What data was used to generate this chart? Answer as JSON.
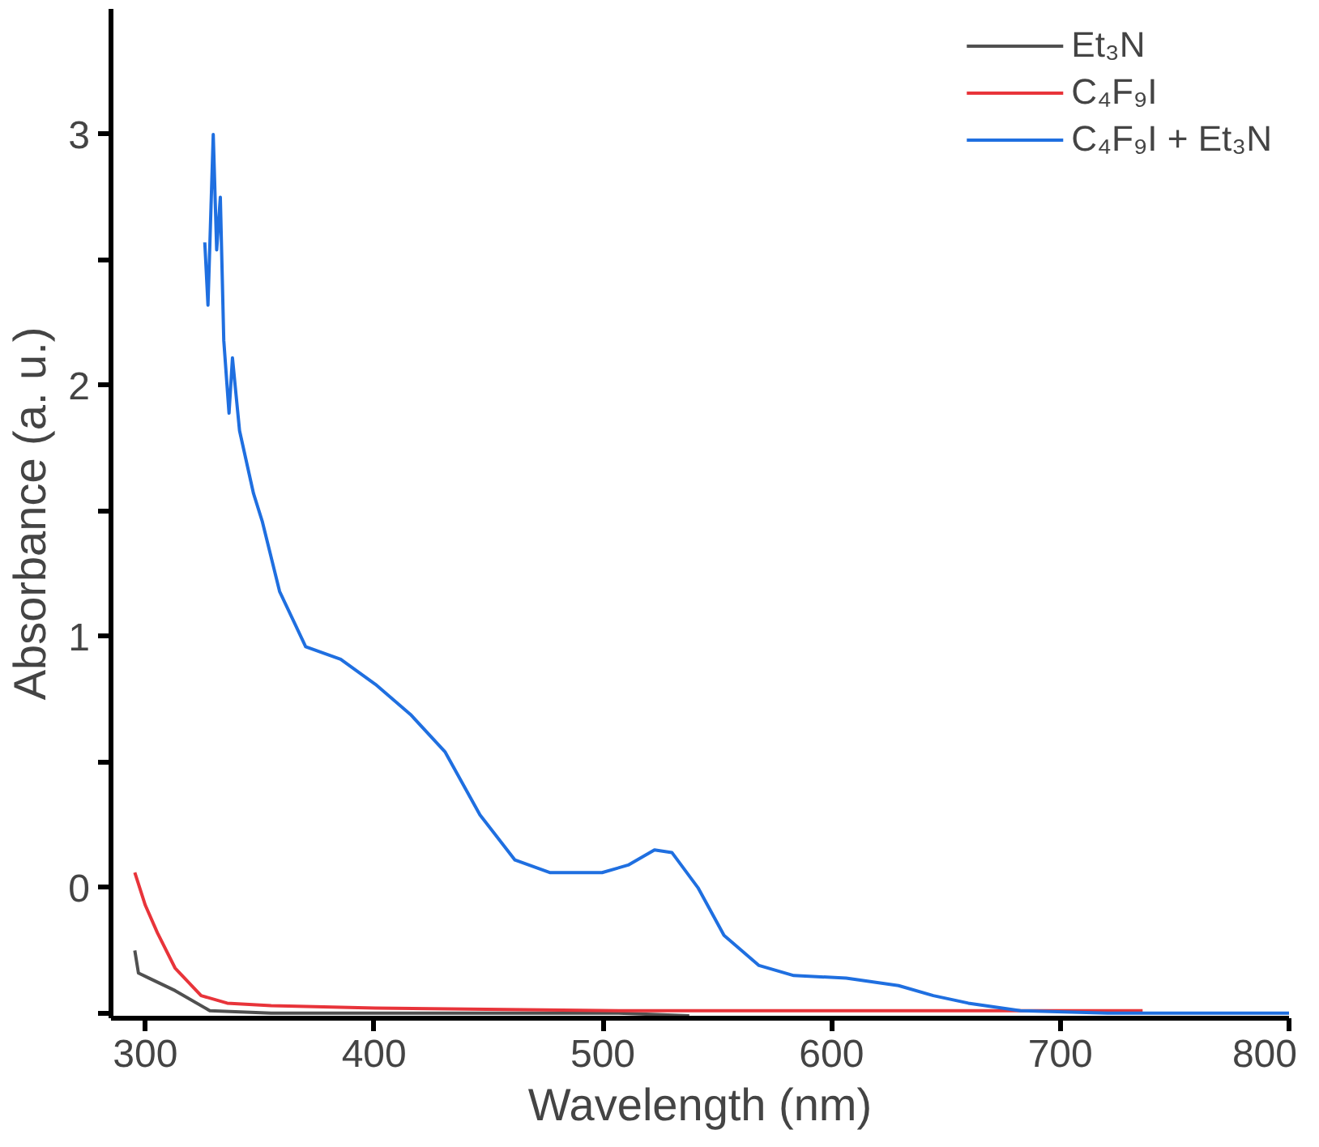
{
  "chart_data": {
    "type": "line",
    "xlabel": "Wavelength (nm)",
    "ylabel": "Absorbance (a. u.)",
    "xlim": [
      285,
      800
    ],
    "ylim": [
      -0.52,
      3.5
    ],
    "xticks": [
      300,
      400,
      500,
      600,
      700,
      800
    ],
    "yticks": [
      {
        "value": -0.5,
        "label": null
      },
      0,
      {
        "value": 0.5,
        "label": null
      },
      1,
      {
        "value": 1.5,
        "label": null
      },
      2,
      {
        "value": 2.5,
        "label": null
      },
      3
    ],
    "grid": false,
    "legend": "top right",
    "marker": "none",
    "line_style": "solid",
    "series": [
      {
        "name": "Et₃N",
        "color": "#505050",
        "x": [
          295.4,
          297,
          301.5,
          313,
          328.2,
          355,
          507,
          537.8
        ],
        "values": [
          -0.25,
          -0.34,
          -0.36,
          -0.41,
          -0.49,
          -0.5,
          -0.5,
          -0.51
        ]
      },
      {
        "name": "C₄F₉I",
        "color": "#e8343a",
        "x": [
          295.4,
          300,
          305.3,
          313,
          324.4,
          335.8,
          355,
          400.6,
          507,
          736
        ],
        "values": [
          0.06,
          -0.07,
          -0.18,
          -0.32,
          -0.43,
          -0.46,
          -0.47,
          -0.48,
          -0.49,
          -0.49
        ]
      },
      {
        "name": "C₄F₉I + Et₃N",
        "color": "#1f6fe0",
        "x": [
          326,
          327.4,
          329.7,
          331.2,
          332.8,
          334.3,
          336.6,
          338.1,
          341.2,
          347.3,
          351.1,
          358.7,
          370.1,
          385.4,
          400.6,
          415.9,
          431.1,
          446.3,
          461.6,
          476.8,
          499.7,
          511.1,
          522.6,
          530.2,
          541.6,
          553,
          568.3,
          583.5,
          606.4,
          629.3,
          644.5,
          659.8,
          682.6,
          720.7,
          800
        ],
        "values": [
          2.57,
          2.32,
          3.0,
          2.54,
          2.75,
          2.18,
          1.89,
          2.11,
          1.82,
          1.57,
          1.46,
          1.18,
          0.96,
          0.91,
          0.81,
          0.69,
          0.54,
          0.29,
          0.11,
          0.06,
          0.06,
          0.09,
          0.15,
          0.14,
          0,
          -0.19,
          -0.31,
          -0.35,
          -0.36,
          -0.39,
          -0.43,
          -0.46,
          -0.49,
          -0.5,
          -0.5
        ]
      }
    ]
  }
}
